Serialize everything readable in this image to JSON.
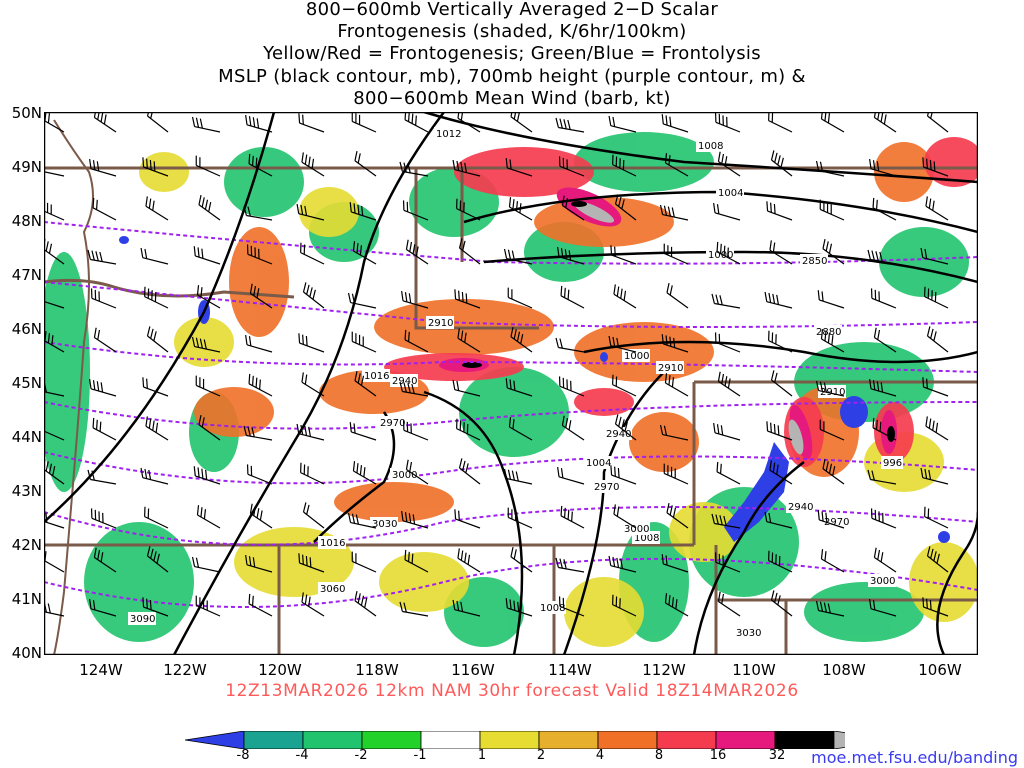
{
  "title_lines": [
    "800−600mb Vertically Averaged 2−D Scalar",
    "Frontogenesis (shaded, K/6hr/100km)",
    "Yellow/Red = Frontogenesis;  Green/Blue = Frontolysis",
    "MSLP (black contour, mb), 700mb height (purple contour, m) &",
    "800−600mb Mean Wind (barb, kt)"
  ],
  "valid_line": "12Z13MAR2026 12km NAM 30hr forecast Valid 18Z14MAR2026",
  "source_url": "moe.met.fsu.edu/banding",
  "lat_labels": [
    "50N",
    "49N",
    "48N",
    "47N",
    "46N",
    "45N",
    "44N",
    "43N",
    "42N",
    "41N",
    "40N"
  ],
  "lon_labels": [
    "124W",
    "122W",
    "120W",
    "118W",
    "116W",
    "114W",
    "112W",
    "110W",
    "108W",
    "106W"
  ],
  "mslp_labels": [
    "1012",
    "1008",
    "1004",
    "1000",
    "1000",
    "1016",
    "1004",
    "1016",
    "1008",
    "1008",
    "996"
  ],
  "height_labels": [
    "2850",
    "2880",
    "2910",
    "2910",
    "2910",
    "2940",
    "2940",
    "2940",
    "2970",
    "2970",
    "2970",
    "3000",
    "3000",
    "3000",
    "3030",
    "3030",
    "3060",
    "3090"
  ],
  "colorbar": {
    "ticks": [
      "-8",
      "-4",
      "-2",
      "-1",
      "1",
      "2",
      "4",
      "8",
      "16",
      "32"
    ],
    "colors": [
      "#2f3fe6",
      "#1aa390",
      "#21c36e",
      "#22d22a",
      "#ffffff",
      "#e6dc32",
      "#e6af2d",
      "#f07028",
      "#f53c4f",
      "#e6197d",
      "#000000",
      "#b4b4b4"
    ]
  },
  "colors": {
    "frontogenesis_yellow": "#e6dc32",
    "frontogenesis_orange": "#f07028",
    "frontogenesis_red": "#f53c4f",
    "frontogenesis_magenta": "#e6197d",
    "frontolysis_green": "#21c36e",
    "frontolysis_blue": "#2f3fe6",
    "mslp_contour": "#000000",
    "height_contour": "#a020f0",
    "borders": "#7a5a48"
  }
}
